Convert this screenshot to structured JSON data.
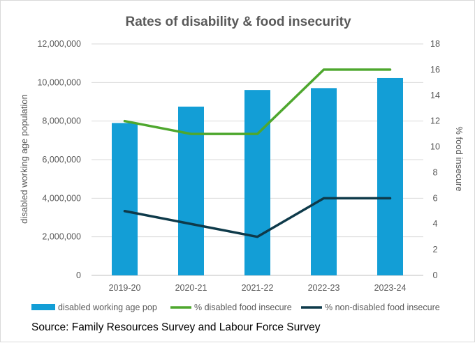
{
  "chart_data": {
    "type": "bar+line",
    "title": "Rates of disability & food insecurity",
    "categories": [
      "2019-20",
      "2020-21",
      "2021-22",
      "2022-23",
      "2023-24"
    ],
    "series": [
      {
        "name": "disabled working age pop",
        "type": "bar",
        "axis": "left",
        "color": "#139ed6",
        "values": [
          7900000,
          8750000,
          9610000,
          9710000,
          10230000
        ]
      },
      {
        "name": "% disabled food insecure",
        "type": "line",
        "axis": "right",
        "color": "#4ea72e",
        "values": [
          12,
          11,
          11,
          16,
          16
        ]
      },
      {
        "name": "% non-disabled food insecure",
        "type": "line",
        "axis": "right",
        "color": "#0e3a4a",
        "values": [
          5,
          4,
          3,
          6,
          6
        ]
      }
    ],
    "ylabel": "disabled working age population",
    "ylim": [
      0,
      12000000
    ],
    "yticks": [
      "0",
      "2,000,000",
      "4,000,000",
      "6,000,000",
      "8,000,000",
      "10,000,000",
      "12,000,000"
    ],
    "y2label": "% food insecure",
    "y2lim": [
      0,
      18
    ],
    "y2ticks": [
      "0",
      "2",
      "4",
      "6",
      "8",
      "10",
      "12",
      "14",
      "16",
      "18"
    ],
    "grid": true,
    "legend": "bottom"
  },
  "source": "Source: Family Resources Survey and Labour Force Survey"
}
